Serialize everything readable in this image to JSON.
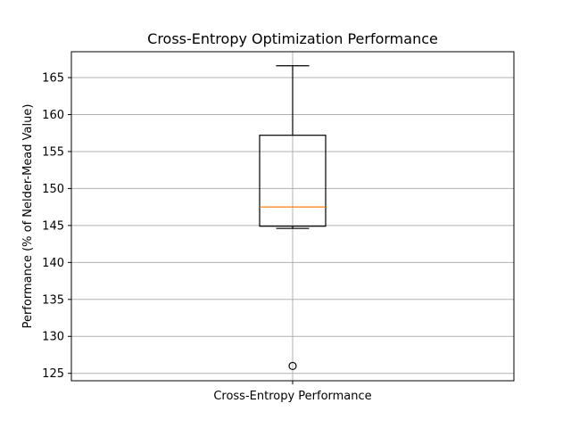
{
  "chart_data": {
    "type": "box",
    "title": "Cross-Entropy Optimization Performance",
    "xlabel": "",
    "ylabel": "Performance (% of Nelder-Mead Value)",
    "categories": [
      "Cross-Entropy Performance"
    ],
    "boxes": [
      {
        "category": "Cross-Entropy Performance",
        "whisker_low": 144.6,
        "q1": 144.9,
        "median": 147.5,
        "q3": 157.2,
        "whisker_high": 166.6,
        "outliers": [
          126.0
        ]
      }
    ],
    "ylim": [
      124,
      168.5
    ],
    "yticks": [
      125,
      130,
      135,
      140,
      145,
      150,
      155,
      160,
      165
    ],
    "grid": true,
    "colors": {
      "box": "#000000",
      "median": "#ff7f0e",
      "grid": "#b0b0b0"
    }
  }
}
